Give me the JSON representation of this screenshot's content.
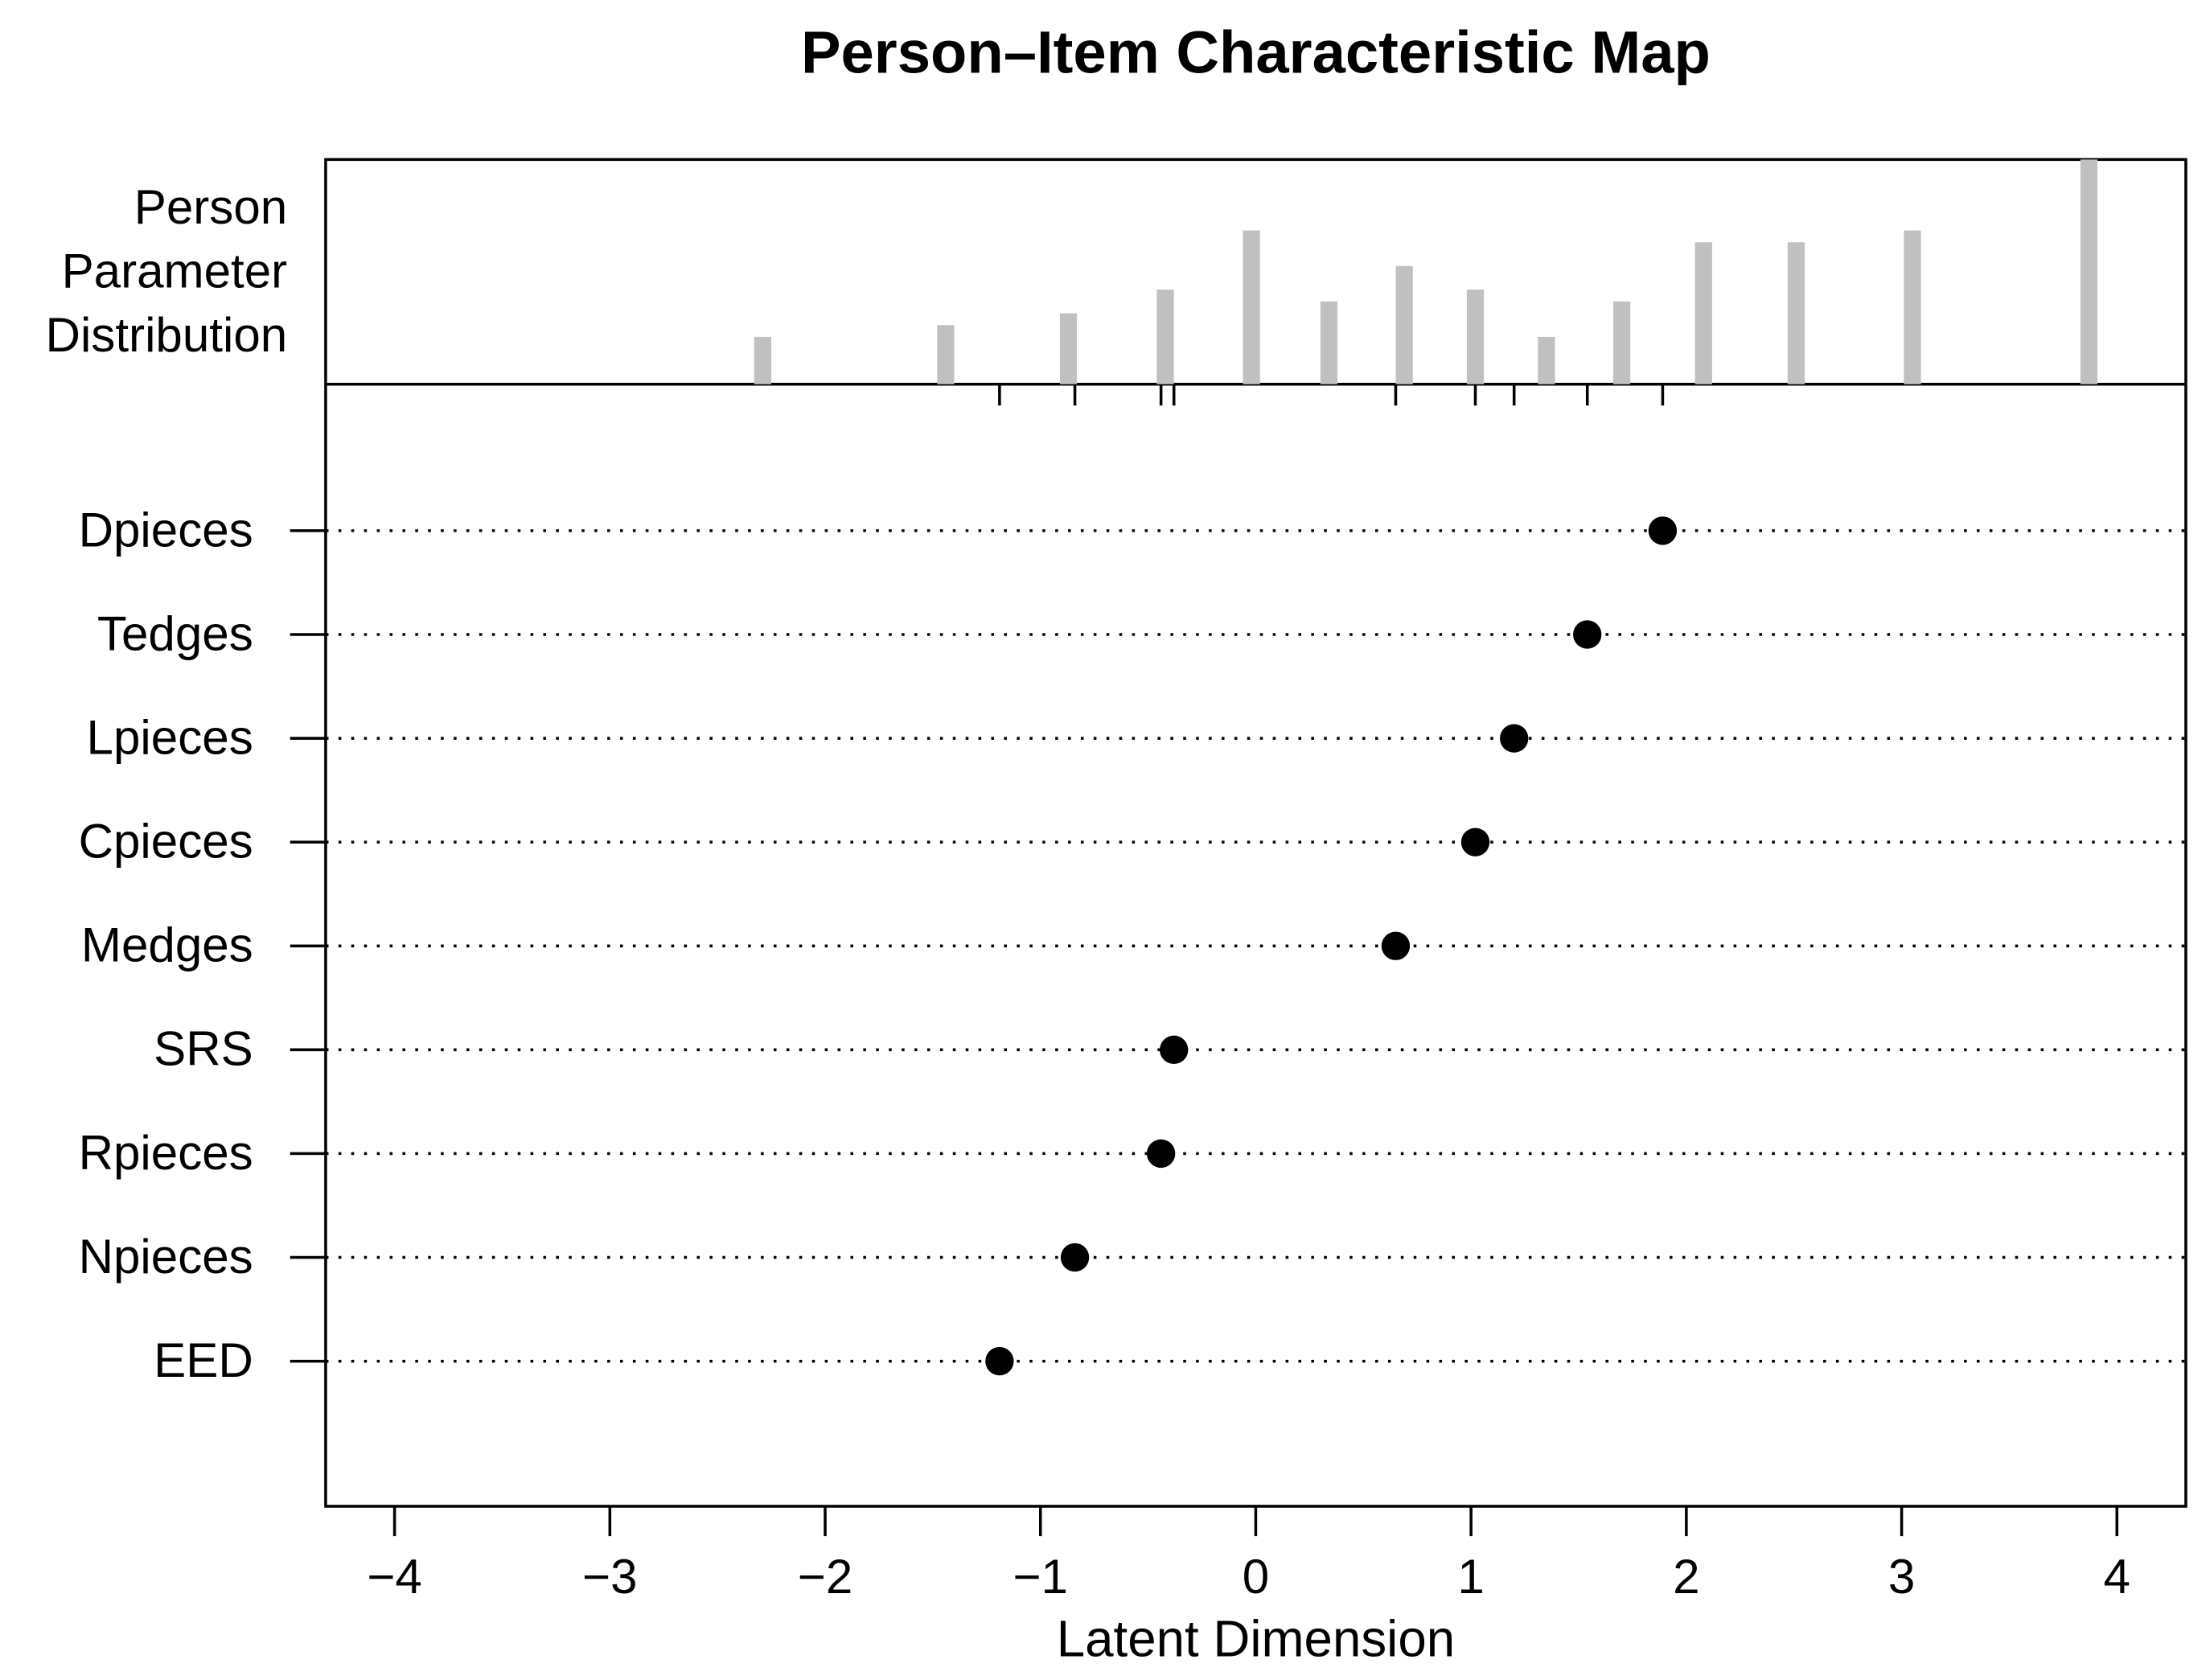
{
  "chart_data": {
    "type": "person-item-map",
    "title": "Person–Item Characteristic Map",
    "xlabel": "Latent Dimension",
    "person_label": [
      "Person",
      "Parameter",
      "Distribution"
    ],
    "items": {
      "categories": [
        "Dpieces",
        "Tedges",
        "Lpieces",
        "Cpieces",
        "Medges",
        "SRS",
        "Rpieces",
        "Npieces",
        "EED"
      ],
      "values": [
        1.89,
        1.54,
        1.2,
        1.02,
        0.65,
        -0.38,
        -0.44,
        -0.84,
        -1.19
      ],
      "color": "#000000"
    },
    "persons": {
      "x": [
        -2.29,
        -1.44,
        -0.87,
        -0.42,
        -0.02,
        0.34,
        0.69,
        1.02,
        1.35,
        1.7,
        2.08,
        2.51,
        3.05,
        3.87
      ],
      "values": [
        4,
        5,
        6,
        8,
        13,
        7,
        10,
        8,
        4,
        7,
        12,
        12,
        13,
        19
      ],
      "ylim": [
        0,
        19
      ],
      "color": "#c0c0c0"
    },
    "xlim": [
      -4.32,
      4.32
    ],
    "xticks": [
      {
        "value": -4,
        "label": "−4"
      },
      {
        "value": -3,
        "label": "−3"
      },
      {
        "value": -2,
        "label": "−2"
      },
      {
        "value": -1,
        "label": "−1"
      },
      0,
      1,
      2,
      3,
      4
    ]
  }
}
